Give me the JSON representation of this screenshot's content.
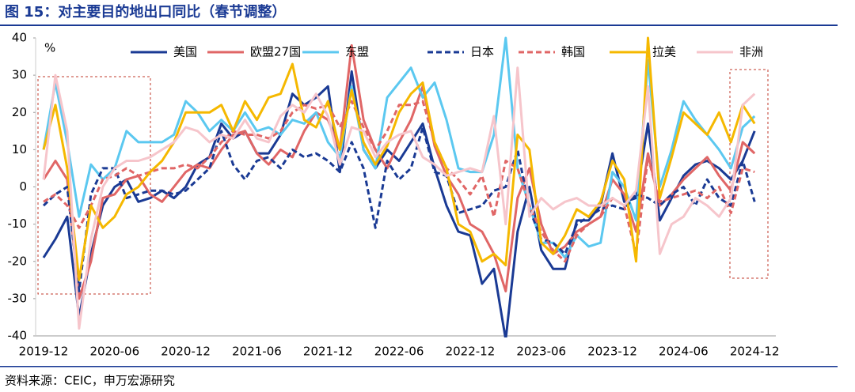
{
  "chart_data": {
    "type": "line",
    "title": "图 15：对主要目的地出口同比（春节调整）",
    "y_label": "%",
    "source": "资料来源：CEIC，申万宏源研究",
    "categories": [
      "2019-12",
      null,
      null,
      null,
      null,
      null,
      "2020-06",
      null,
      null,
      null,
      null,
      null,
      "2020-12",
      null,
      null,
      null,
      null,
      null,
      "2021-06",
      null,
      null,
      null,
      null,
      null,
      "2021-12",
      null,
      null,
      null,
      null,
      null,
      "2022-06",
      null,
      null,
      null,
      null,
      null,
      "2022-12",
      null,
      null,
      null,
      null,
      null,
      "2023-06",
      null,
      null,
      null,
      null,
      null,
      "2023-12",
      null,
      null,
      null,
      null,
      null,
      "2024-06",
      null,
      null,
      null,
      null,
      null,
      "2024-12"
    ],
    "ylim": [
      -40,
      40
    ],
    "yticks": [
      -40,
      -30,
      -20,
      -10,
      0,
      10,
      20,
      30,
      40
    ],
    "grid": false,
    "legend": "top",
    "series": [
      {
        "name": "美国",
        "color": "#1a3a94",
        "dashed": false,
        "values": [
          -19,
          -14,
          -8,
          -35,
          -18,
          -5,
          0,
          2,
          -4,
          -3,
          -1,
          -3,
          0,
          6,
          8,
          17,
          13,
          15,
          9,
          9,
          14,
          25,
          22,
          24,
          27,
          4,
          31,
          10,
          5,
          10,
          7,
          12,
          17,
          5,
          -5,
          -12,
          -13,
          -26,
          -22,
          -41,
          -12,
          0,
          -17,
          -22,
          -22,
          -9,
          -9,
          -5,
          9,
          -4,
          -3,
          17,
          -9,
          -3,
          3,
          6,
          7,
          5,
          2,
          7,
          15
        ]
      },
      {
        "name": "欧盟27国",
        "color": "#e06666",
        "dashed": false,
        "values": [
          2,
          7,
          2,
          -30,
          -20,
          -3,
          -2,
          2,
          3,
          -2,
          -4,
          0,
          4,
          6,
          5,
          10,
          14,
          15,
          9,
          6,
          10,
          8,
          15,
          20,
          18,
          10,
          38,
          18,
          10,
          5,
          12,
          18,
          27,
          11,
          3,
          -2,
          -10,
          -12,
          -18,
          -28,
          -3,
          5,
          -10,
          -18,
          -16,
          -12,
          -10,
          -8,
          2,
          -2,
          -12,
          9,
          -5,
          -2,
          2,
          5,
          8,
          3,
          -1,
          12,
          9
        ]
      },
      {
        "name": "东盟",
        "color": "#5bc8f0",
        "dashed": false,
        "values": [
          10,
          28,
          12,
          -8,
          6,
          2,
          5,
          15,
          12,
          12,
          12,
          14,
          23,
          20,
          15,
          18,
          15,
          20,
          15,
          16,
          14,
          18,
          17,
          20,
          12,
          8,
          27,
          10,
          5,
          24,
          28,
          32,
          24,
          28,
          18,
          5,
          4,
          4,
          14,
          40,
          5,
          -5,
          -15,
          -15,
          -19,
          -13,
          -16,
          -15,
          4,
          0,
          -9,
          34,
          0,
          10,
          23,
          18,
          14,
          10,
          5,
          16,
          19
        ]
      },
      {
        "name": "日本",
        "color": "#1a3a94",
        "dashed": true,
        "values": [
          -5,
          -2,
          0,
          -28,
          -2,
          5,
          5,
          -3,
          -2,
          -1,
          -1,
          -2,
          -1,
          2,
          5,
          15,
          6,
          2,
          7,
          8,
          5,
          10,
          8,
          9,
          7,
          4,
          12,
          5,
          -11,
          7,
          2,
          5,
          16,
          4,
          3,
          -7,
          -6,
          -5,
          -1,
          0,
          10,
          -6,
          -14,
          -15,
          -18,
          -10,
          -8,
          -6,
          -5,
          -6,
          -2,
          -3,
          -5,
          -2,
          0,
          -5,
          2,
          -3,
          -5,
          7,
          -4
        ]
      },
      {
        "name": "韩国",
        "color": "#e06666",
        "dashed": true,
        "values": [
          -4,
          -2,
          -5,
          -11,
          -5,
          2,
          3,
          5,
          3,
          4,
          5,
          5,
          6,
          5,
          8,
          12,
          15,
          14,
          14,
          13,
          15,
          20,
          22,
          21,
          22,
          16,
          23,
          16,
          10,
          15,
          22,
          22,
          23,
          12,
          5,
          2,
          -2,
          3,
          -8,
          7,
          5,
          -5,
          -12,
          -17,
          -20,
          -13,
          -10,
          -8,
          -3,
          -5,
          -18,
          8,
          -4,
          -3,
          -2,
          -1,
          -3,
          0,
          -7,
          5,
          4
        ]
      },
      {
        "name": "拉美",
        "color": "#f5b800",
        "dashed": false,
        "values": [
          10,
          22,
          5,
          -25,
          -5,
          -11,
          -8,
          -2,
          0,
          4,
          7,
          12,
          20,
          20,
          20,
          22,
          15,
          23,
          18,
          24,
          25,
          33,
          18,
          16,
          23,
          10,
          26,
          12,
          6,
          11,
          20,
          25,
          28,
          12,
          5,
          -10,
          -12,
          -20,
          -18,
          -21,
          14,
          10,
          -15,
          -18,
          -13,
          -6,
          -8,
          -4,
          7,
          2,
          -20,
          40,
          -3,
          8,
          20,
          17,
          14,
          20,
          12,
          22,
          17
        ]
      },
      {
        "name": "非洲",
        "color": "#f6c5cb",
        "dashed": false,
        "values": [
          2,
          30,
          15,
          -38,
          -14,
          0,
          5,
          7,
          7,
          8,
          10,
          12,
          16,
          15,
          12,
          14,
          13,
          18,
          13,
          12,
          19,
          22,
          20,
          25,
          19,
          6,
          16,
          15,
          8,
          12,
          14,
          15,
          8,
          6,
          3,
          4,
          5,
          4,
          19,
          -10,
          32,
          -8,
          -3,
          -6,
          -4,
          -3,
          -5,
          -5,
          -3,
          -5,
          -1,
          27,
          -18,
          -10,
          -8,
          -3,
          -5,
          -8,
          -3,
          22,
          25
        ]
      }
    ]
  }
}
